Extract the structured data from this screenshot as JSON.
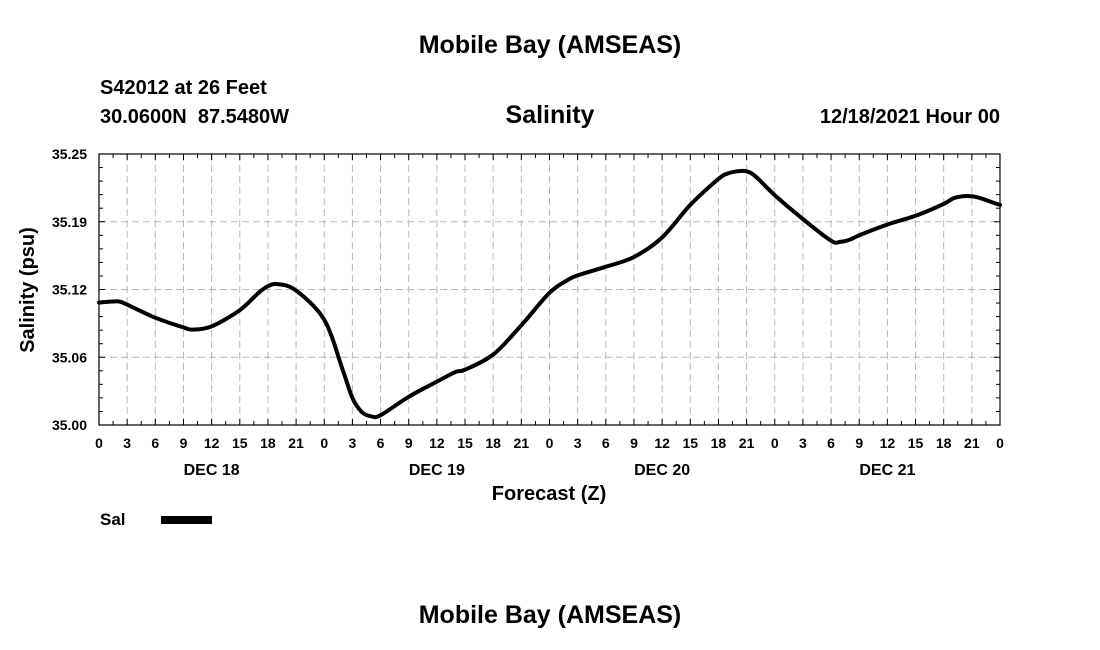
{
  "header": {
    "title": "Mobile Bay (AMSEAS)",
    "station": "S42012 at 26 Feet",
    "coords": "30.0600N  87.5480W",
    "forecast_time": "12/18/2021 Hour 00"
  },
  "footer": {
    "title": "Mobile Bay (AMSEAS)"
  },
  "legend": {
    "label": "Sal",
    "color": "#000000"
  },
  "chart_data": {
    "type": "line",
    "title": "Salinity",
    "xlabel": "Forecast (Z)",
    "ylabel": "Salinity (psu)",
    "xlim": [
      0,
      96
    ],
    "ylim": [
      35.0,
      35.25
    ],
    "yticks": [
      "35.25",
      "35.19",
      "35.12",
      "35.06",
      "35.00"
    ],
    "ytick_values": [
      35.25,
      35.1875,
      35.125,
      35.0625,
      35.0
    ],
    "xtick_labels": [
      "0",
      "3",
      "6",
      "9",
      "12",
      "15",
      "18",
      "21",
      "0",
      "3",
      "6",
      "9",
      "12",
      "15",
      "18",
      "21",
      "0",
      "3",
      "6",
      "9",
      "12",
      "15",
      "18",
      "21",
      "0",
      "3",
      "6",
      "9",
      "12",
      "15",
      "18",
      "21",
      "0"
    ],
    "day_labels": [
      {
        "label": "DEC 18",
        "hour": 12
      },
      {
        "label": "DEC 19",
        "hour": 36
      },
      {
        "label": "DEC 20",
        "hour": 60
      },
      {
        "label": "DEC 21",
        "hour": 84
      }
    ],
    "grid": true,
    "series": [
      {
        "name": "Sal",
        "x": [
          0,
          2,
          3,
          6,
          9,
          10,
          12,
          15,
          17,
          18,
          19,
          21,
          24,
          26,
          27,
          28,
          29,
          30,
          33,
          36,
          38,
          39,
          42,
          45,
          48,
          50,
          51,
          54,
          57,
          60,
          63,
          66,
          67,
          68,
          69,
          70,
          72,
          75,
          78,
          79,
          80,
          81,
          84,
          87,
          90,
          91,
          92,
          93,
          94,
          95,
          96
        ],
        "values": [
          35.113,
          35.114,
          35.111,
          35.099,
          35.09,
          35.088,
          35.091,
          35.106,
          35.122,
          35.128,
          35.13,
          35.124,
          35.097,
          35.05,
          35.025,
          35.012,
          35.008,
          35.009,
          35.026,
          35.04,
          35.049,
          35.051,
          35.065,
          35.092,
          35.122,
          35.134,
          35.138,
          35.146,
          35.155,
          35.173,
          35.203,
          35.227,
          35.232,
          35.234,
          35.234,
          35.229,
          35.212,
          35.19,
          35.17,
          35.169,
          35.171,
          35.175,
          35.185,
          35.193,
          35.204,
          35.209,
          35.211,
          35.211,
          35.209,
          35.206,
          35.203
        ]
      }
    ]
  }
}
